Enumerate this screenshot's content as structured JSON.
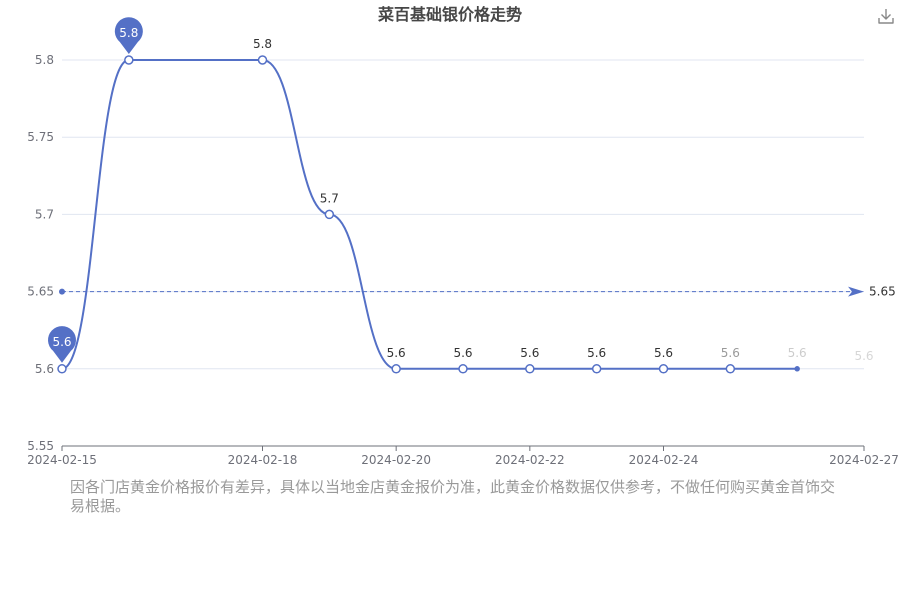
{
  "chart_data": {
    "type": "line",
    "title": "菜百基础银价格走势",
    "xlabel": "",
    "ylabel": "",
    "x": [
      "2024-02-15",
      "2024-02-16",
      "2024-02-18",
      "2024-02-19",
      "2024-02-20",
      "2024-02-21",
      "2024-02-22",
      "2024-02-23",
      "2024-02-24",
      "2024-02-25",
      "2024-02-26"
    ],
    "values": [
      5.6,
      5.8,
      5.8,
      5.7,
      5.6,
      5.6,
      5.6,
      5.6,
      5.6,
      5.6,
      5.6
    ],
    "x_ticks": [
      "2024-02-15",
      "2024-02-18",
      "2024-02-20",
      "2024-02-22",
      "2024-02-24",
      "2024-02-27"
    ],
    "y_ticks": [
      "5.55",
      "5.6",
      "5.65",
      "5.7",
      "5.75",
      "5.8"
    ],
    "ylim": [
      5.55,
      5.82
    ],
    "smooth": true,
    "grid": true,
    "mark_points": [
      {
        "type": "max",
        "label": "5.8"
      },
      {
        "type": "min",
        "label": "5.6"
      }
    ],
    "mark_line": {
      "type": "average",
      "value": 5.65,
      "label": "5.65"
    },
    "line_color": "#5470c6"
  },
  "disclaimer": "因各门店黄金价格报价有差异，具体以当地金店黄金报价为准，此黄金价格数据仅供参考，不做任何购买黄金首饰交易根据。",
  "toolbox": {
    "download_icon": "download-icon"
  }
}
